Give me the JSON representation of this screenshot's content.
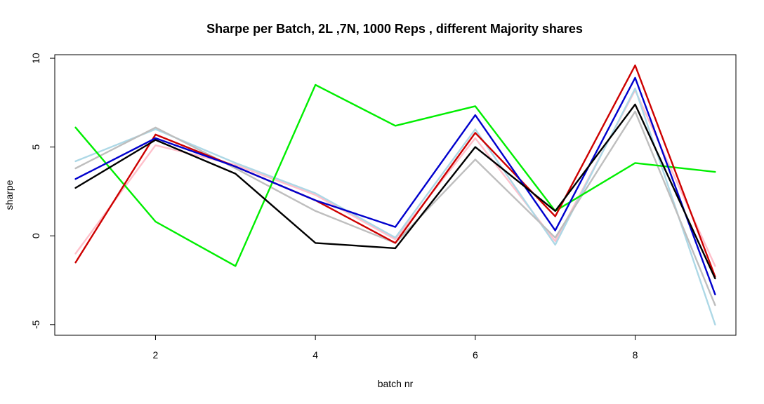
{
  "chart_data": {
    "type": "line",
    "title": "Sharpe per Batch,  2L ,7N,  1000  Reps , different Majority shares",
    "xlabel": "batch nr",
    "ylabel": "sharpe",
    "x": [
      1,
      2,
      3,
      4,
      5,
      6,
      7,
      8,
      9
    ],
    "xlim": [
      0.74,
      9.26
    ],
    "ylim": [
      -5.6,
      10.2
    ],
    "x_ticks": [
      2,
      4,
      6,
      8
    ],
    "y_ticks": [
      -5,
      0,
      5,
      10
    ],
    "grid": false,
    "legend": "none",
    "series": [
      {
        "color": "#ffc0cb",
        "values": [
          -1.0,
          5.1,
          4.0,
          2.3,
          -0.2,
          5.5,
          -0.3,
          8.2,
          -1.7
        ]
      },
      {
        "color": "#add8e6",
        "values": [
          4.2,
          6.0,
          4.1,
          2.4,
          -0.1,
          6.0,
          -0.5,
          8.3,
          -5.0
        ]
      },
      {
        "color": "#bebebe",
        "values": [
          3.8,
          6.1,
          3.8,
          1.4,
          -0.4,
          4.3,
          -0.1,
          7.0,
          -3.9
        ]
      },
      {
        "color": "#00ee00",
        "values": [
          6.1,
          0.8,
          -1.7,
          8.5,
          6.2,
          7.3,
          1.4,
          4.1,
          3.6
        ]
      },
      {
        "color": "#cd0000",
        "values": [
          -1.5,
          5.7,
          3.9,
          2.0,
          -0.4,
          5.8,
          1.1,
          9.6,
          -2.3
        ]
      },
      {
        "color": "#0000cd",
        "values": [
          3.2,
          5.5,
          3.9,
          2.0,
          0.5,
          6.8,
          0.3,
          8.9,
          -3.3
        ]
      },
      {
        "color": "#000000",
        "values": [
          2.7,
          5.4,
          3.5,
          -0.4,
          -0.7,
          5.0,
          1.4,
          7.4,
          -2.4
        ]
      }
    ]
  }
}
